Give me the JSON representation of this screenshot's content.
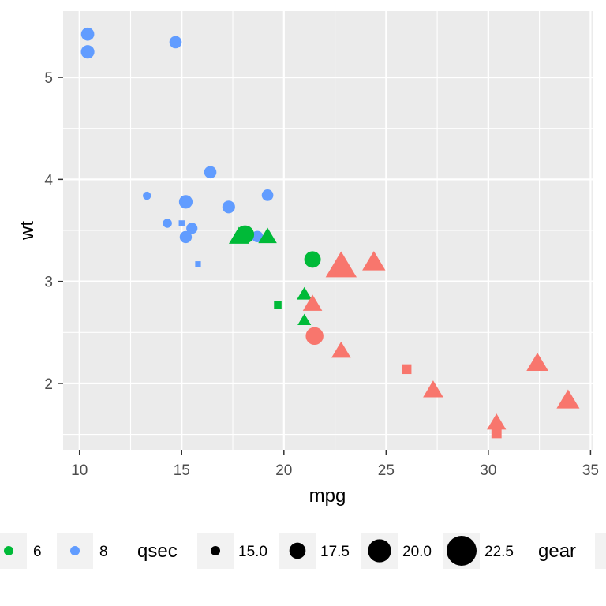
{
  "chart_data": {
    "type": "scatter",
    "xlabel": "mpg",
    "ylabel": "wt",
    "xlim": [
      9.2,
      35.1
    ],
    "ylim": [
      1.35,
      5.65
    ],
    "x_ticks": [
      10,
      15,
      20,
      25,
      30,
      35
    ],
    "y_ticks": [
      2,
      3,
      4,
      5
    ],
    "grid": true,
    "legend_position": "bottom",
    "colors": {
      "4": "#F8766D",
      "6": "#00BA38",
      "8": "#619CFF"
    },
    "shape_encoding": {
      "3": "circle",
      "4": "triangle",
      "5": "square"
    },
    "points": [
      {
        "x": 21.0,
        "y": 2.62,
        "cyl": "6",
        "qsec": 16.46,
        "gear": "4"
      },
      {
        "x": 21.0,
        "y": 2.875,
        "cyl": "6",
        "qsec": 17.02,
        "gear": "4"
      },
      {
        "x": 22.8,
        "y": 2.32,
        "cyl": "4",
        "qsec": 18.61,
        "gear": "4"
      },
      {
        "x": 21.4,
        "y": 3.215,
        "cyl": "6",
        "qsec": 19.44,
        "gear": "3"
      },
      {
        "x": 18.7,
        "y": 3.44,
        "cyl": "8",
        "qsec": 17.02,
        "gear": "3"
      },
      {
        "x": 18.1,
        "y": 3.46,
        "cyl": "6",
        "qsec": 20.22,
        "gear": "3"
      },
      {
        "x": 14.3,
        "y": 3.57,
        "cyl": "8",
        "qsec": 15.84,
        "gear": "3"
      },
      {
        "x": 24.4,
        "y": 3.19,
        "cyl": "4",
        "qsec": 20.0,
        "gear": "4"
      },
      {
        "x": 22.8,
        "y": 3.15,
        "cyl": "4",
        "qsec": 22.9,
        "gear": "4"
      },
      {
        "x": 19.2,
        "y": 3.44,
        "cyl": "6",
        "qsec": 18.3,
        "gear": "4"
      },
      {
        "x": 17.8,
        "y": 3.44,
        "cyl": "6",
        "qsec": 18.9,
        "gear": "4"
      },
      {
        "x": 16.4,
        "y": 4.07,
        "cyl": "8",
        "qsec": 17.4,
        "gear": "3"
      },
      {
        "x": 17.3,
        "y": 3.73,
        "cyl": "8",
        "qsec": 17.6,
        "gear": "3"
      },
      {
        "x": 15.2,
        "y": 3.78,
        "cyl": "8",
        "qsec": 18.0,
        "gear": "3"
      },
      {
        "x": 10.4,
        "y": 5.25,
        "cyl": "8",
        "qsec": 17.98,
        "gear": "3"
      },
      {
        "x": 10.4,
        "y": 5.424,
        "cyl": "8",
        "qsec": 17.82,
        "gear": "3"
      },
      {
        "x": 14.7,
        "y": 5.345,
        "cyl": "8",
        "qsec": 17.42,
        "gear": "3"
      },
      {
        "x": 32.4,
        "y": 2.2,
        "cyl": "4",
        "qsec": 19.47,
        "gear": "4"
      },
      {
        "x": 30.4,
        "y": 1.615,
        "cyl": "4",
        "qsec": 18.52,
        "gear": "4"
      },
      {
        "x": 33.9,
        "y": 1.835,
        "cyl": "4",
        "qsec": 19.9,
        "gear": "4"
      },
      {
        "x": 21.5,
        "y": 2.465,
        "cyl": "4",
        "qsec": 20.01,
        "gear": "3"
      },
      {
        "x": 15.5,
        "y": 3.52,
        "cyl": "8",
        "qsec": 16.87,
        "gear": "3"
      },
      {
        "x": 15.2,
        "y": 3.435,
        "cyl": "8",
        "qsec": 17.3,
        "gear": "3"
      },
      {
        "x": 13.3,
        "y": 3.84,
        "cyl": "8",
        "qsec": 15.41,
        "gear": "3"
      },
      {
        "x": 19.2,
        "y": 3.845,
        "cyl": "8",
        "qsec": 17.05,
        "gear": "3"
      },
      {
        "x": 27.3,
        "y": 1.935,
        "cyl": "4",
        "qsec": 18.9,
        "gear": "4"
      },
      {
        "x": 26.0,
        "y": 2.14,
        "cyl": "4",
        "qsec": 16.7,
        "gear": "5"
      },
      {
        "x": 30.4,
        "y": 1.513,
        "cyl": "4",
        "qsec": 16.9,
        "gear": "5"
      },
      {
        "x": 15.8,
        "y": 3.17,
        "cyl": "8",
        "qsec": 14.5,
        "gear": "5"
      },
      {
        "x": 19.7,
        "y": 2.77,
        "cyl": "6",
        "qsec": 15.5,
        "gear": "5"
      },
      {
        "x": 15.0,
        "y": 3.57,
        "cyl": "8",
        "qsec": 14.6,
        "gear": "5"
      },
      {
        "x": 21.4,
        "y": 2.78,
        "cyl": "4",
        "qsec": 18.6,
        "gear": "4"
      }
    ],
    "legend": {
      "color_items": [
        {
          "label": "6",
          "color": "#00BA38"
        },
        {
          "label": "8",
          "color": "#619CFF"
        }
      ],
      "size_title": "qsec",
      "size_items": [
        {
          "label": "15.0",
          "value": 15.0
        },
        {
          "label": "17.5",
          "value": 17.5
        },
        {
          "label": "20.0",
          "value": 20.0
        },
        {
          "label": "22.5",
          "value": 22.5
        }
      ],
      "shape_title": "gear"
    }
  }
}
